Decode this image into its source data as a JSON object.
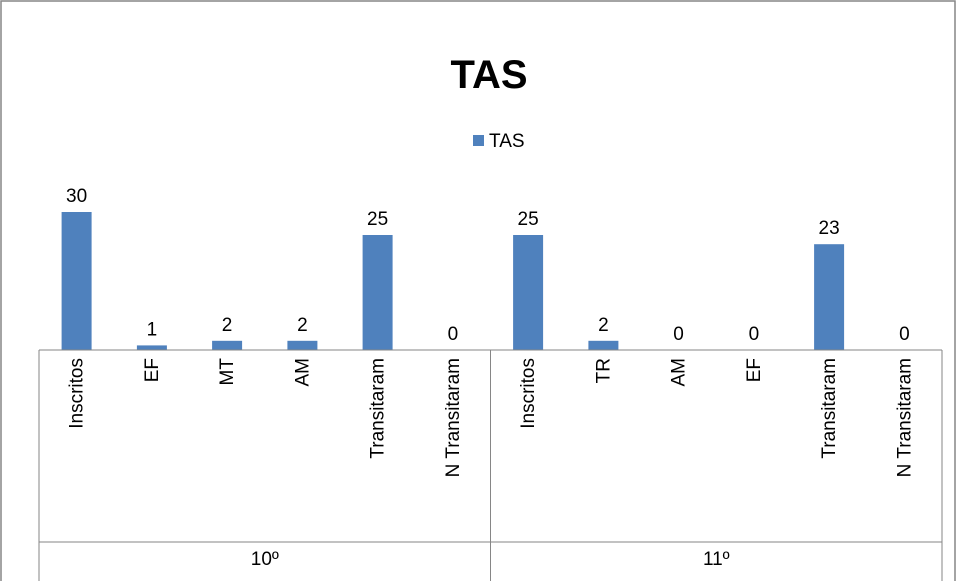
{
  "chart_data": {
    "type": "bar",
    "title": "TAS",
    "legend": {
      "position": "top",
      "entries": [
        "TAS"
      ]
    },
    "series": [
      {
        "name": "TAS",
        "color": "#4f81bd",
        "values": [
          30,
          1,
          2,
          2,
          25,
          0,
          25,
          2,
          0,
          0,
          23,
          0
        ]
      }
    ],
    "categories": [
      "Inscritos",
      "EF",
      "MT",
      "AM",
      "Transitaram",
      "N Transitaram",
      "Inscritos",
      "TR",
      "AM",
      "EF",
      "Transitaram",
      "N Transitaram"
    ],
    "groups": [
      {
        "label": "10º",
        "count": 6
      },
      {
        "label": "11º",
        "count": 6
      }
    ],
    "ylim": [
      0,
      30
    ],
    "grid": false,
    "data_labels": true
  }
}
